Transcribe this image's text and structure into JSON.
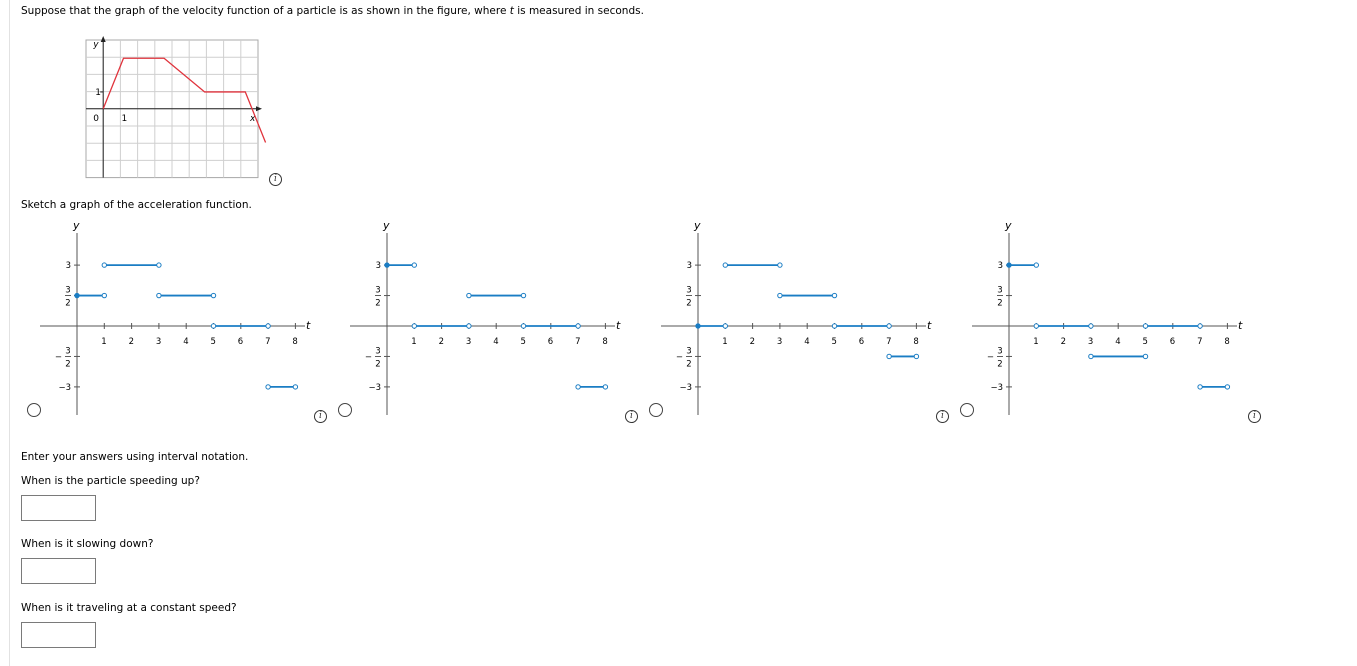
{
  "question": {
    "intro_before": "Suppose that the graph of the velocity function of a particle is as shown in the figure, where ",
    "intro_var": "t",
    "intro_after": " is measured in seconds.",
    "sketch_prompt": "Sketch a graph of the acceleration function.",
    "interval_hint": "Enter your answers using interval notation.",
    "q_speeding_up": "When is the particle speeding up?",
    "q_slowing_down": "When is it slowing down?",
    "q_constant": "When is it traveling at a constant speed?"
  },
  "answers": {
    "speeding_up": "",
    "slowing_down": "",
    "constant": ""
  },
  "info_icon": "i",
  "velocity_graph": {
    "y_axis_label": "y",
    "x_axis_label": "x",
    "origin_label": "0",
    "x_tick_label": "1",
    "y_tick_label": "1",
    "curve_color": "#e0333c",
    "points": [
      [
        0,
        0
      ],
      [
        1,
        3
      ],
      [
        3,
        3
      ],
      [
        5,
        1
      ],
      [
        7,
        1
      ],
      [
        8,
        -2
      ]
    ]
  },
  "choice_axes": {
    "y_label": "y",
    "x_label": "t",
    "x_ticks": [
      "1",
      "2",
      "3",
      "4",
      "5",
      "6",
      "7",
      "8"
    ],
    "y_ticks": [
      {
        "value": 3,
        "label": "3"
      },
      {
        "value": 1.5,
        "num": "3",
        "den": "2"
      },
      {
        "value": -1.5,
        "sign": "−",
        "num": "3",
        "den": "2"
      },
      {
        "value": -3,
        "label": "−3"
      }
    ],
    "segment_color": "#1a7dc4"
  },
  "chart_data": [
    {
      "type": "line",
      "title": "",
      "xlabel": "x",
      "ylabel": "y",
      "x": [
        0,
        1,
        3,
        5,
        7,
        8
      ],
      "y": [
        0,
        3,
        3,
        1,
        1,
        -2
      ],
      "grid": true
    },
    {
      "type": "line",
      "choice": "A",
      "xlabel": "t",
      "ylabel": "y",
      "xlim": [
        0,
        8
      ],
      "ylim": [
        -3,
        3
      ],
      "segments": [
        {
          "x": [
            0,
            1
          ],
          "y": 1.5,
          "left": "closed",
          "right": "open"
        },
        {
          "x": [
            1,
            3
          ],
          "y": 3,
          "left": "open",
          "right": "open"
        },
        {
          "x": [
            3,
            5
          ],
          "y": 1.5,
          "left": "open",
          "right": "open"
        },
        {
          "x": [
            5,
            7
          ],
          "y": 0,
          "left": "open",
          "right": "open"
        },
        {
          "x": [
            7,
            8
          ],
          "y": -3,
          "left": "open",
          "right": "open"
        }
      ]
    },
    {
      "type": "line",
      "choice": "B",
      "xlabel": "t",
      "ylabel": "y",
      "xlim": [
        0,
        8
      ],
      "ylim": [
        -3,
        3
      ],
      "segments": [
        {
          "x": [
            0,
            1
          ],
          "y": 3,
          "left": "closed",
          "right": "open"
        },
        {
          "x": [
            1,
            3
          ],
          "y": 0,
          "left": "open",
          "right": "open"
        },
        {
          "x": [
            3,
            5
          ],
          "y": 1.5,
          "left": "open",
          "right": "open"
        },
        {
          "x": [
            5,
            7
          ],
          "y": 0,
          "left": "open",
          "right": "open"
        },
        {
          "x": [
            7,
            8
          ],
          "y": -3,
          "left": "open",
          "right": "open"
        }
      ]
    },
    {
      "type": "line",
      "choice": "C",
      "xlabel": "t",
      "ylabel": "y",
      "xlim": [
        0,
        8
      ],
      "ylim": [
        -3,
        3
      ],
      "segments": [
        {
          "x": [
            0,
            1
          ],
          "y": 0,
          "left": "closed",
          "right": "open"
        },
        {
          "x": [
            1,
            3
          ],
          "y": 3,
          "left": "open",
          "right": "open"
        },
        {
          "x": [
            3,
            5
          ],
          "y": 1.5,
          "left": "open",
          "right": "open"
        },
        {
          "x": [
            5,
            7
          ],
          "y": 0,
          "left": "open",
          "right": "open"
        },
        {
          "x": [
            7,
            8
          ],
          "y": -1.5,
          "left": "open",
          "right": "open"
        }
      ]
    },
    {
      "type": "line",
      "choice": "D",
      "xlabel": "t",
      "ylabel": "y",
      "xlim": [
        0,
        8
      ],
      "ylim": [
        -3,
        3
      ],
      "segments": [
        {
          "x": [
            0,
            1
          ],
          "y": 3,
          "left": "closed",
          "right": "open"
        },
        {
          "x": [
            1,
            3
          ],
          "y": 0,
          "left": "open",
          "right": "open"
        },
        {
          "x": [
            3,
            5
          ],
          "y": -1.5,
          "left": "open",
          "right": "open"
        },
        {
          "x": [
            5,
            7
          ],
          "y": 0,
          "left": "open",
          "right": "open"
        },
        {
          "x": [
            7,
            8
          ],
          "y": -3,
          "left": "open",
          "right": "open"
        }
      ]
    }
  ]
}
